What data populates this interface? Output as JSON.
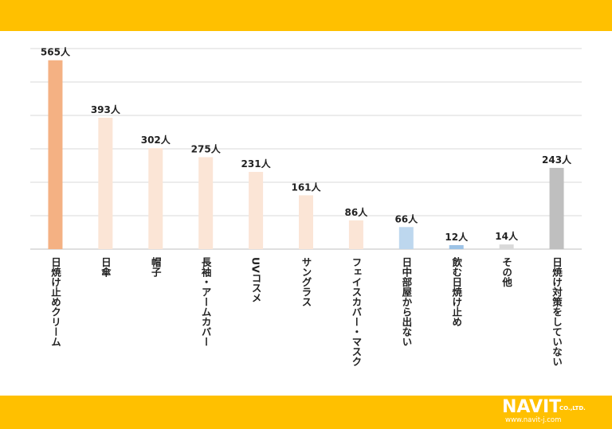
{
  "chart_data": {
    "type": "bar",
    "title": "",
    "xlabel": "",
    "ylabel": "",
    "ylim": [
      0,
      600
    ],
    "grid": true,
    "unit_suffix": "人",
    "categories": [
      "日焼け止めクリーム",
      "日傘",
      "帽子",
      "長袖・アームカバー",
      "UVコスメ",
      "サングラス",
      "フェイスカバー・マスク",
      "日中部屋から出ない",
      "飲む日焼け止め",
      "その他",
      "日焼け対策をしていない"
    ],
    "values": [
      565,
      393,
      302,
      275,
      231,
      161,
      86,
      66,
      12,
      14,
      243
    ],
    "value_labels": [
      "565人",
      "393人",
      "302人",
      "275人",
      "231人",
      "161人",
      "86人",
      "66人",
      "12人",
      "14人",
      "243人"
    ],
    "colors": [
      "#F4B183",
      "#FBE5D6",
      "#FBE5D6",
      "#FBE5D6",
      "#FBE5D6",
      "#FBE5D6",
      "#FBE5D6",
      "#BDD7EE",
      "#9DC3E6",
      "#D9D9D9",
      "#BFBFBF"
    ]
  },
  "logo": {
    "name": "NAVIT",
    "sub": "CO.,LTD.",
    "url": "www.navit-j.com"
  }
}
